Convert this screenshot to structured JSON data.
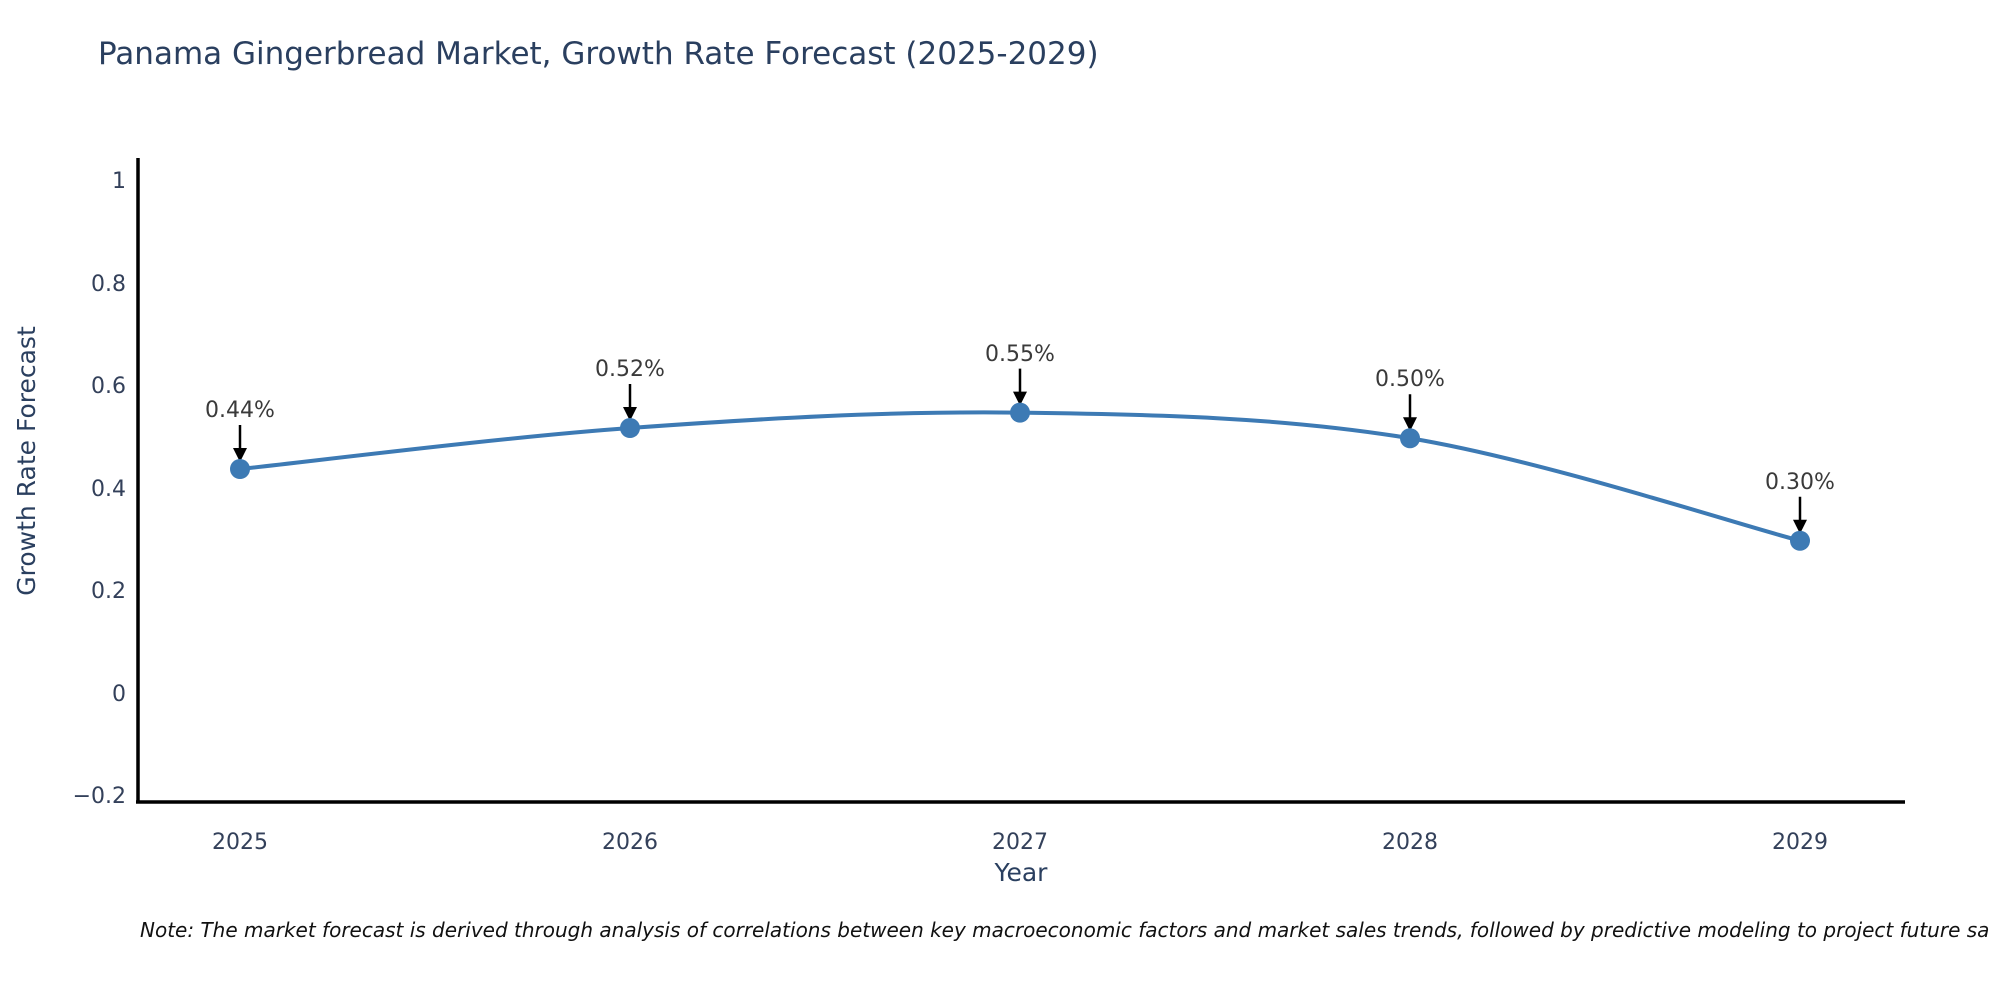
{
  "chart_data": {
    "type": "line",
    "title": "Panama Gingerbread Market, Growth Rate Forecast (2025-2029)",
    "xlabel": "Year",
    "ylabel": "Growth Rate Forecast",
    "categories": [
      "2025",
      "2026",
      "2027",
      "2028",
      "2029"
    ],
    "series": [
      {
        "name": "Growth Rate Forecast",
        "values": [
          0.44,
          0.52,
          0.55,
          0.5,
          0.3
        ]
      }
    ],
    "point_labels": [
      "0.44%",
      "0.52%",
      "0.55%",
      "0.50%",
      "0.30%"
    ],
    "y_ticks": [
      1,
      0.8,
      0.6,
      0.4,
      0.2,
      0,
      -0.2
    ],
    "y_tick_labels": [
      "1",
      "0.8",
      "0.6",
      "0.4",
      "0.2",
      "0",
      "−0.2"
    ],
    "ylim": [
      -0.2,
      1
    ],
    "grid": false,
    "legend_position": "none",
    "line_color": "#3d7ab4",
    "marker_color": "#3d7ab4",
    "arrow_color": "#000000",
    "axis_color": "#000000",
    "title_color": "#2a3f5f",
    "tick_color": "#33405a",
    "annotation_color": "#3a3a3a"
  },
  "note": "Note: The market forecast is derived through analysis of correlations between key macroeconomic factors and market sales trends, followed by predictive modeling to project future sa"
}
